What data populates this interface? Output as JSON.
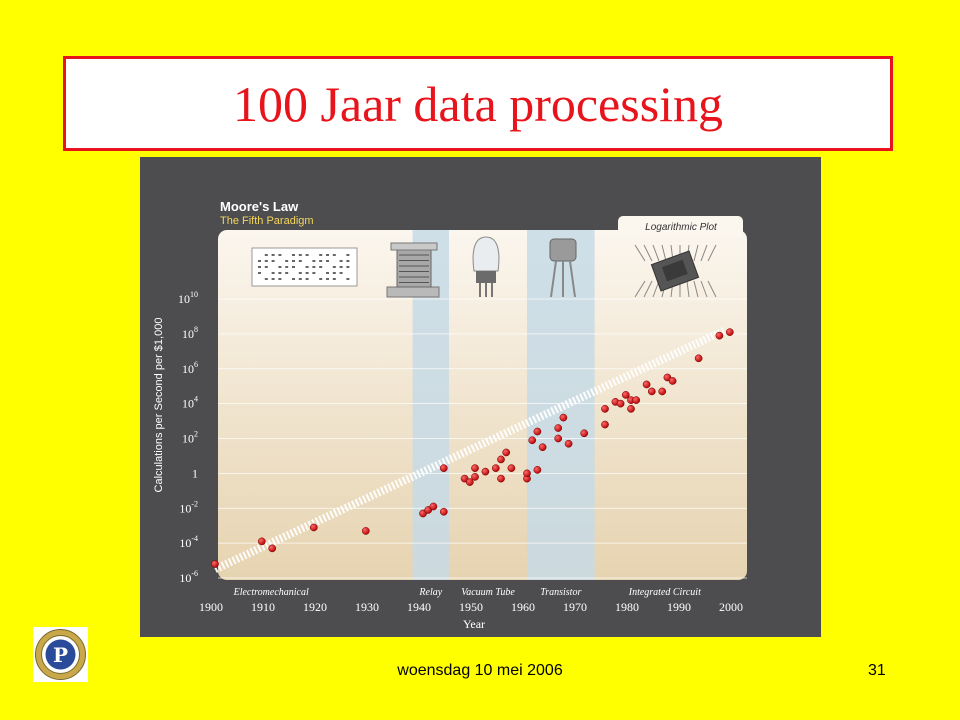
{
  "slide": {
    "title": "100 Jaar data processing",
    "footer_date": "woensdag 10 mei 2006",
    "page_number": "31",
    "colors": {
      "background": "#ffff00",
      "title": "#e8141c",
      "title_border": "#e8141c"
    }
  },
  "logo": {
    "icon": "club-emblem-icon",
    "letter": "P"
  },
  "chart_data": {
    "type": "scatter",
    "title": "Moore's Law",
    "subtitle": "The Fifth Paradigm",
    "plot_note": "Logarithmic Plot",
    "xlabel": "Year",
    "ylabel": "Calculations per Second per $1,000",
    "xlim": [
      1900,
      2000
    ],
    "y_log10_range": [
      -6,
      10
    ],
    "y_scale": "log",
    "x_ticks": [
      "1900",
      "1910",
      "1920",
      "1930",
      "1940",
      "1950",
      "1960",
      "1970",
      "1980",
      "1990",
      "2000"
    ],
    "y_ticks": [
      {
        "base": "10",
        "exp": "10",
        "log": 10
      },
      {
        "base": "10",
        "exp": "8",
        "log": 8
      },
      {
        "base": "10",
        "exp": "6",
        "log": 6
      },
      {
        "base": "10",
        "exp": "4",
        "log": 4
      },
      {
        "base": "10",
        "exp": "2",
        "log": 2
      },
      {
        "base": "1",
        "exp": "",
        "log": 0
      },
      {
        "base": "10",
        "exp": "-2",
        "log": -2
      },
      {
        "base": "10",
        "exp": "-4",
        "log": -4
      },
      {
        "base": "10",
        "exp": "-6",
        "log": -6
      }
    ],
    "eras": [
      {
        "name": "Electromechanical",
        "start": 1900,
        "end": 1940,
        "highlight": false,
        "icon": "punch-card-icon"
      },
      {
        "name": "Relay",
        "start": 1938,
        "end": 1945,
        "highlight": true,
        "icon": "relay-icon"
      },
      {
        "name": "Vacuum Tube",
        "start": 1945,
        "end": 1960,
        "highlight": false,
        "icon": "vacuum-tube-icon"
      },
      {
        "name": "Transistor",
        "start": 1960,
        "end": 1973,
        "highlight": true,
        "icon": "transistor-icon"
      },
      {
        "name": "Integrated Circuit",
        "start": 1973,
        "end": 2000,
        "highlight": false,
        "icon": "chip-icon"
      }
    ],
    "trend": {
      "from": [
        1900,
        -5.5
      ],
      "to": [
        1998,
        8.2
      ]
    },
    "points": [
      [
        1900,
        -5.2
      ],
      [
        1909,
        -3.9
      ],
      [
        1911,
        -4.3
      ],
      [
        1919,
        -3.1
      ],
      [
        1929,
        -3.3
      ],
      [
        1940,
        -2.3
      ],
      [
        1941,
        -2.1
      ],
      [
        1942,
        -1.9
      ],
      [
        1944,
        -2.2
      ],
      [
        1944,
        0.3
      ],
      [
        1948,
        -0.3
      ],
      [
        1949,
        -0.5
      ],
      [
        1950,
        0.3
      ],
      [
        1950,
        -0.2
      ],
      [
        1952,
        0.1
      ],
      [
        1954,
        0.3
      ],
      [
        1955,
        0.8
      ],
      [
        1955,
        -0.3
      ],
      [
        1956,
        1.2
      ],
      [
        1957,
        0.3
      ],
      [
        1960,
        -0.3
      ],
      [
        1960,
        0.0
      ],
      [
        1961,
        1.9
      ],
      [
        1962,
        0.2
      ],
      [
        1962,
        2.4
      ],
      [
        1963,
        1.5
      ],
      [
        1966,
        2.0
      ],
      [
        1966,
        2.6
      ],
      [
        1967,
        3.2
      ],
      [
        1968,
        1.7
      ],
      [
        1971,
        2.3
      ],
      [
        1975,
        2.8
      ],
      [
        1975,
        3.7
      ],
      [
        1977,
        4.1
      ],
      [
        1978,
        4.0
      ],
      [
        1979,
        4.5
      ],
      [
        1980,
        4.2
      ],
      [
        1980,
        3.7
      ],
      [
        1981,
        4.2
      ],
      [
        1983,
        5.1
      ],
      [
        1984,
        4.7
      ],
      [
        1986,
        4.7
      ],
      [
        1987,
        5.5
      ],
      [
        1988,
        5.3
      ],
      [
        1993,
        6.6
      ],
      [
        1997,
        7.9
      ],
      [
        1999,
        8.1
      ]
    ]
  }
}
